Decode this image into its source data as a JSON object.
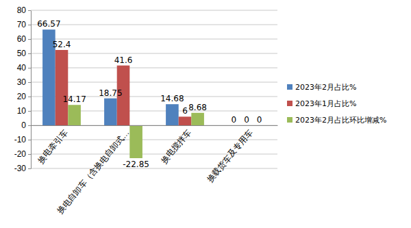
{
  "chart_data": {
    "type": "bar",
    "categories": [
      "换电牵引车",
      "换电自卸车（含换电自卸式…",
      "换电搅拌车",
      "换载货车及专用车"
    ],
    "series": [
      {
        "name": "2023年2月占比%",
        "color": "#4f81bd",
        "values": [
          66.57,
          18.75,
          14.68,
          0
        ]
      },
      {
        "name": "2023年1月占比%",
        "color": "#c0504d",
        "values": [
          52.4,
          41.6,
          6,
          0
        ]
      },
      {
        "name": "2023年2月占比环比增减%",
        "color": "#9bbb59",
        "values": [
          14.17,
          -22.85,
          8.68,
          0
        ]
      }
    ],
    "ylim": [
      -30,
      80
    ],
    "yticks": [
      -30,
      -20,
      -10,
      0,
      10,
      20,
      30,
      40,
      50,
      60,
      70,
      80
    ],
    "grid": true,
    "legend": "right",
    "data_labels": true
  }
}
